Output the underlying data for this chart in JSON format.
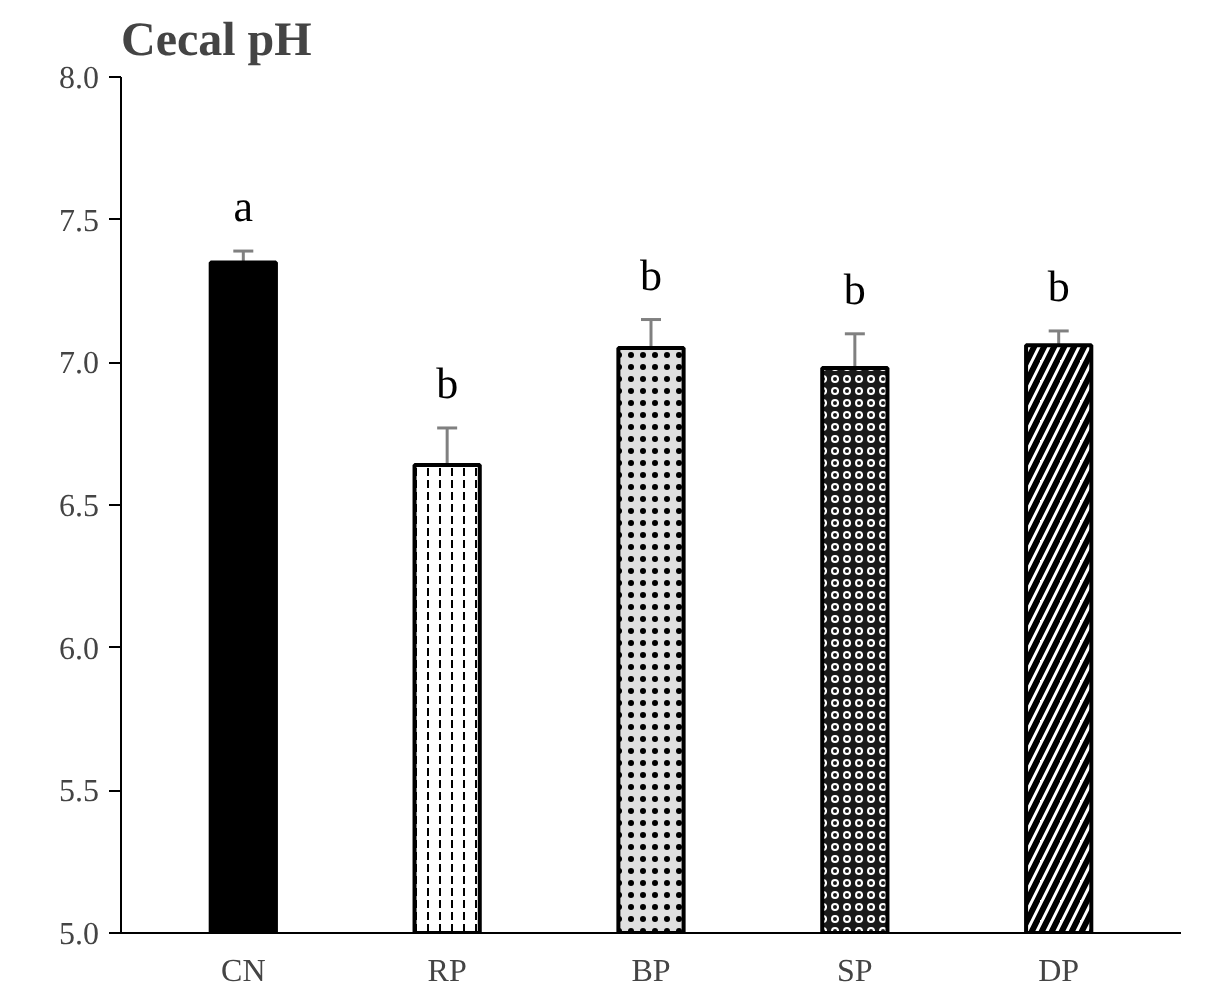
{
  "chart_data": {
    "type": "bar",
    "title": "Cecal pH",
    "categories": [
      "CN",
      "RP",
      "BP",
      "SP",
      "DP"
    ],
    "values": [
      7.35,
      6.64,
      7.05,
      6.98,
      7.06
    ],
    "errors": [
      0.04,
      0.13,
      0.1,
      0.12,
      0.05
    ],
    "colors": [
      "#000000",
      "#ffffff",
      "#e0e0e0",
      "#1a1a1a",
      "#ffffff"
    ],
    "ylim": [
      5.0,
      8.0
    ],
    "yticks": [
      {
        "value": 5.0,
        "label": "5.0"
      },
      {
        "value": 5.5,
        "label": "5.5"
      },
      {
        "value": 6.0,
        "label": "6.0"
      },
      {
        "value": 6.5,
        "label": "6.5"
      },
      {
        "value": 7.0,
        "label": "7.0"
      },
      {
        "value": 7.5,
        "label": "7.5"
      },
      {
        "value": 8.0,
        "label": "8.0"
      }
    ],
    "annotations": [
      "a",
      "b",
      "b",
      "b",
      "b"
    ],
    "grid": false
  }
}
